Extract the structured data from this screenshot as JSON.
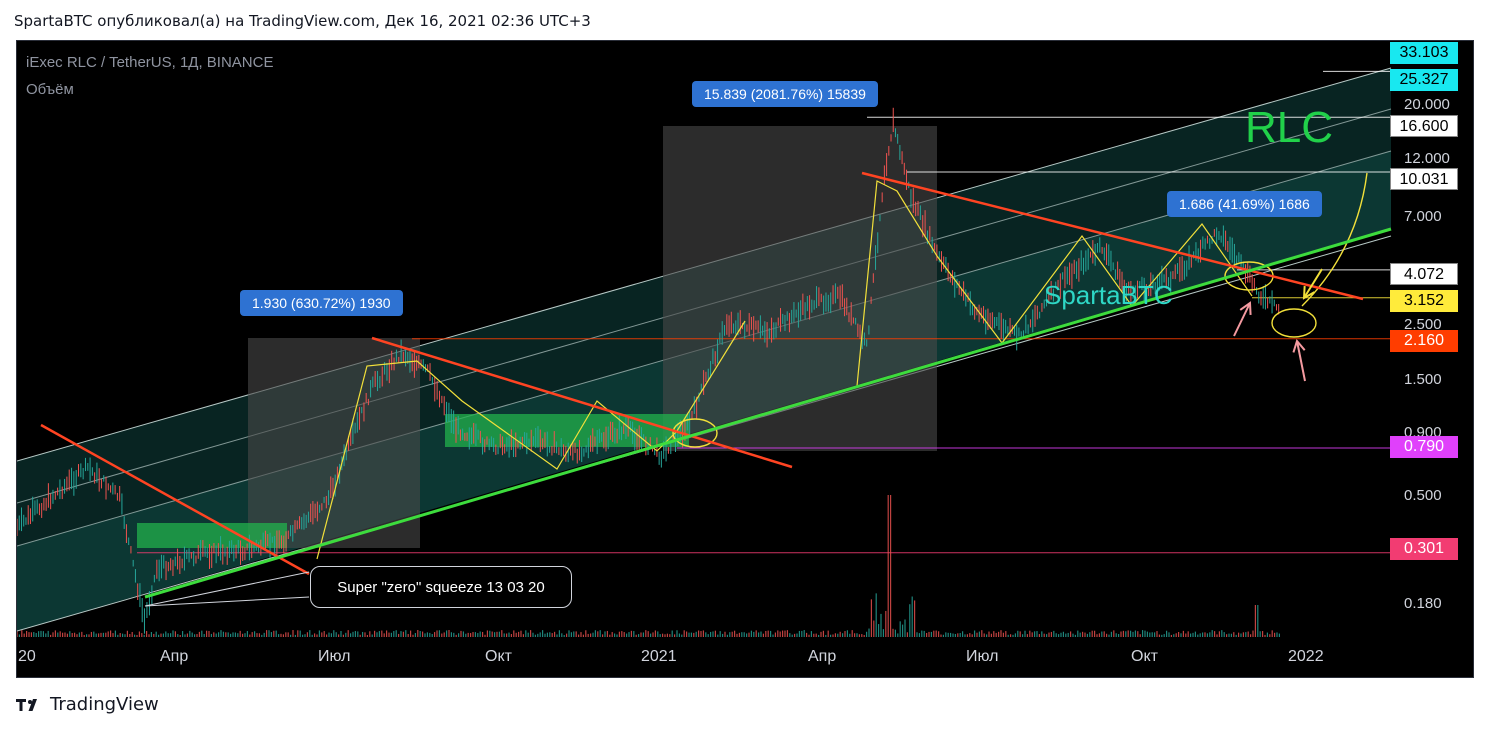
{
  "header": {
    "publish_line": "SpartaBTC опубликовал(а) на TradingView.com, Дек 16, 2021 02:36 UTC+3"
  },
  "legend": {
    "symbol": "iExec RLC / TetherUS, 1Д, BINANCE",
    "volume_label": "Объём"
  },
  "footer": {
    "brand": "TradingView",
    "logo_icon": "tradingview-logo-icon"
  },
  "annotations": {
    "measure_1": "1.930 (630.72%) 1930",
    "measure_2": "15.839 (2081.76%) 15839",
    "measure_3": "1.686 (41.69%) 1686",
    "note": "Super \"zero\" squeeze 13 03 20",
    "rlc_title": "RLC",
    "author_mark": "SpartaBTC"
  },
  "colors": {
    "background": "#000000",
    "channel_fill": "#26a69a",
    "trend_line_red": "#ff4422",
    "support_green": "#3ddc3d",
    "zigzag_yellow": "#f2e03a",
    "candle_up": "#26a69a",
    "candle_down": "#ef5350",
    "badge_blue": "#2e72d2",
    "range_box": "#4a4a4a",
    "accumulation_box": "#22b24c",
    "level_magenta": "#e040fb",
    "level_pink": "#f23c72",
    "level_red": "#ff3d00",
    "level_yellow": "#ffeb3b",
    "level_cyan": "#18e8f0"
  },
  "chart_data": {
    "type": "candlestick",
    "title": "iExec RLC / TetherUS, 1Д, BINANCE",
    "scale": "log",
    "ylim": [
      0.12,
      40
    ],
    "y_ticks": [
      "20.000",
      "12.000",
      "7.000",
      "2.500",
      "1.500",
      "0.900",
      "0.500",
      "0.180"
    ],
    "x_ticks": [
      "20",
      "Апр",
      "Июл",
      "Окт",
      "2021",
      "Апр",
      "Июл",
      "Окт",
      "2022"
    ],
    "price_tags": [
      {
        "label": "33.103",
        "value": 33.103,
        "style": "cyan"
      },
      {
        "label": "25.327",
        "value": 25.327,
        "style": "cyan"
      },
      {
        "label": "16.600",
        "value": 16.6,
        "style": "white"
      },
      {
        "label": "10.031",
        "value": 10.031,
        "style": "white"
      },
      {
        "label": "4.072",
        "value": 4.072,
        "style": "white"
      },
      {
        "label": "3.152",
        "value": 3.152,
        "style": "yellow"
      },
      {
        "label": "2.160",
        "value": 2.16,
        "style": "red"
      },
      {
        "label": "0.790",
        "value": 0.79,
        "style": "magenta"
      },
      {
        "label": "0.301",
        "value": 0.301,
        "style": "pink"
      }
    ],
    "price_path": [
      [
        "2020-01-01",
        0.38
      ],
      [
        "2020-01-20",
        0.5
      ],
      [
        "2020-02-10",
        0.66
      ],
      [
        "2020-02-28",
        0.5
      ],
      [
        "2020-03-13",
        0.16
      ],
      [
        "2020-03-20",
        0.26
      ],
      [
        "2020-04-15",
        0.3
      ],
      [
        "2020-05-10",
        0.31
      ],
      [
        "2020-06-01",
        0.34
      ],
      [
        "2020-06-25",
        0.5
      ],
      [
        "2020-07-20",
        1.4
      ],
      [
        "2020-08-05",
        1.9
      ],
      [
        "2020-08-20",
        1.6
      ],
      [
        "2020-09-05",
        0.95
      ],
      [
        "2020-09-25",
        0.8
      ],
      [
        "2020-10-20",
        0.85
      ],
      [
        "2020-11-10",
        0.75
      ],
      [
        "2020-12-10",
        0.95
      ],
      [
        "2020-12-30",
        0.74
      ],
      [
        "2021-01-15",
        1.0
      ],
      [
        "2021-02-05",
        2.5
      ],
      [
        "2021-03-01",
        2.3
      ],
      [
        "2021-03-25",
        3.0
      ],
      [
        "2021-04-10",
        3.2
      ],
      [
        "2021-04-25",
        2.0
      ],
      [
        "2021-05-05",
        10.0
      ],
      [
        "2021-05-10",
        15.8
      ],
      [
        "2021-05-20",
        8.0
      ],
      [
        "2021-06-05",
        4.5
      ],
      [
        "2021-06-25",
        2.8
      ],
      [
        "2021-07-20",
        2.2
      ],
      [
        "2021-08-15",
        3.8
      ],
      [
        "2021-09-05",
        5.0
      ],
      [
        "2021-09-20",
        3.3
      ],
      [
        "2021-10-15",
        3.8
      ],
      [
        "2021-11-10",
        5.8
      ],
      [
        "2021-11-25",
        4.0
      ],
      [
        "2021-12-05",
        3.1
      ],
      [
        "2021-12-15",
        2.8
      ]
    ]
  }
}
